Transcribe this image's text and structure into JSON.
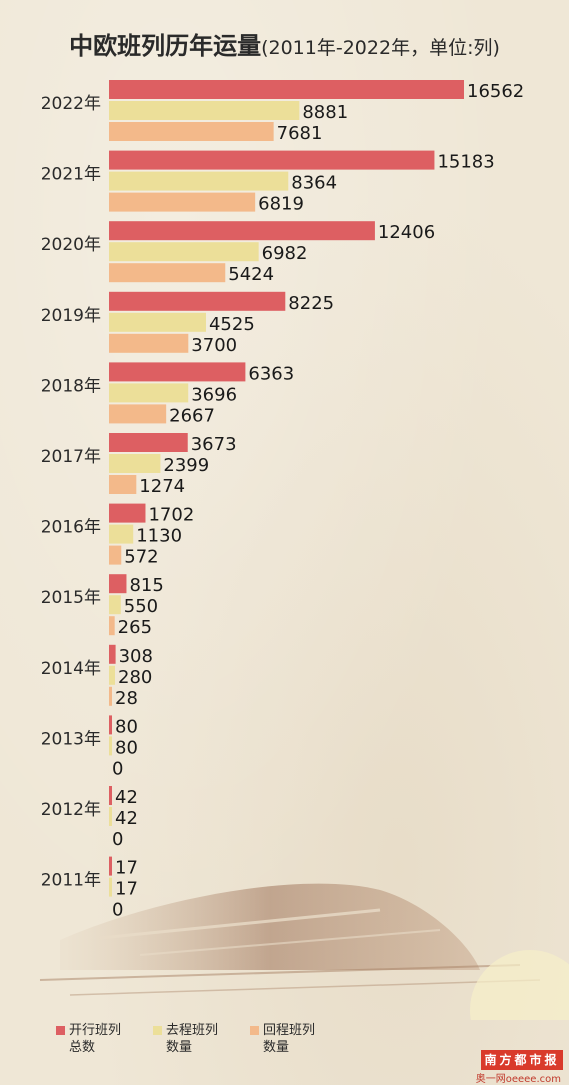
{
  "title": "中欧班列历年运量",
  "subtitle": "(2011年-2022年，单位:列)",
  "chart_data": {
    "type": "bar",
    "orientation": "horizontal",
    "categories": [
      "2022年",
      "2021年",
      "2020年",
      "2019年",
      "2018年",
      "2017年",
      "2016年",
      "2015年",
      "2014年",
      "2013年",
      "2012年",
      "2011年"
    ],
    "series": [
      {
        "name": "开行班列总数",
        "values": [
          16562,
          15183,
          12406,
          8225,
          6363,
          3673,
          1702,
          815,
          308,
          80,
          42,
          17
        ]
      },
      {
        "name": "去程班列数量",
        "values": [
          8881,
          8364,
          6982,
          4525,
          3696,
          2399,
          1130,
          550,
          280,
          80,
          42,
          17
        ]
      },
      {
        "name": "回程班列数量",
        "values": [
          7681,
          6819,
          5424,
          3700,
          2667,
          1274,
          572,
          265,
          28,
          0,
          0,
          0
        ]
      }
    ],
    "colors": [
      "#dd5f62",
      "#ecdf99",
      "#f3b98a"
    ],
    "legend_position": "bottom-left",
    "grid": false
  },
  "legend": [
    {
      "line1": "开行班列",
      "line2": "总数"
    },
    {
      "line1": "去程班列",
      "line2": "数量"
    },
    {
      "line1": "回程班列",
      "line2": "数量"
    }
  ],
  "logo": {
    "text": "南方都市报",
    "site": "奥一网oeeee.com"
  }
}
